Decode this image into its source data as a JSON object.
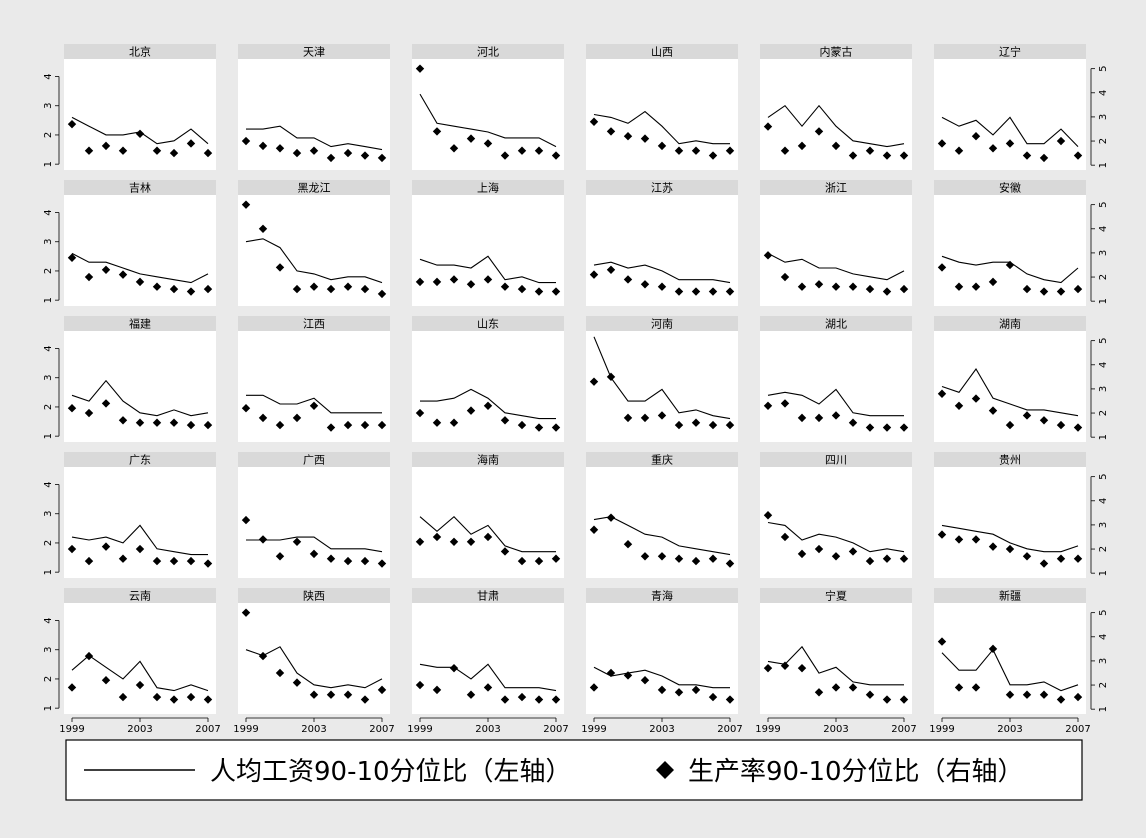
{
  "chart_data": {
    "type": "line",
    "layout": "small-multiples 5x6",
    "x": [
      1999,
      2000,
      2001,
      2002,
      2003,
      2004,
      2005,
      2006,
      2007
    ],
    "x_ticks": [
      "1999",
      "2003",
      "2007"
    ],
    "left_axis": {
      "ylim": [
        0.8,
        4.6
      ],
      "ticks": [
        "1",
        "2",
        "3",
        "4"
      ]
    },
    "right_axis": {
      "ylim": [
        0.8,
        5.4
      ],
      "ticks": [
        "1",
        "2",
        "3",
        "4",
        "5"
      ]
    },
    "legend": {
      "line_label": "人均工资90-10分位比（左轴）",
      "marker_label": "生产率90-10分位比（右轴）",
      "placement": "bottom"
    },
    "colors": {
      "background": "#eaeaea",
      "panel": "#ffffff",
      "strip": "#d9d9d9",
      "series": "#000000"
    },
    "panels": [
      {
        "name": "北京",
        "line": [
          2.6,
          2.3,
          2.0,
          2.0,
          2.1,
          1.7,
          1.8,
          2.2,
          1.7
        ],
        "points": [
          2.7,
          1.6,
          1.8,
          1.6,
          2.3,
          1.6,
          1.5,
          1.9,
          1.5
        ]
      },
      {
        "name": "天津",
        "line": [
          2.2,
          2.2,
          2.3,
          1.9,
          1.9,
          1.6,
          1.7,
          1.6,
          1.5
        ],
        "points": [
          2.0,
          1.8,
          1.7,
          1.5,
          1.6,
          1.3,
          1.5,
          1.4,
          1.3
        ]
      },
      {
        "name": "河北",
        "line": [
          3.4,
          2.4,
          2.3,
          2.2,
          2.1,
          1.9,
          1.9,
          1.9,
          1.6
        ],
        "points": [
          5.0,
          2.4,
          1.7,
          2.1,
          1.9,
          1.4,
          1.6,
          1.6,
          1.4
        ]
      },
      {
        "name": "山西",
        "line": [
          2.7,
          2.6,
          2.4,
          2.8,
          2.3,
          1.7,
          1.8,
          1.7,
          1.7
        ],
        "points": [
          2.8,
          2.4,
          2.2,
          2.1,
          1.8,
          1.6,
          1.6,
          1.4,
          1.6
        ]
      },
      {
        "name": "内蒙古",
        "line": [
          2.6,
          3.0,
          2.3,
          3.0,
          2.3,
          1.8,
          1.7,
          1.6,
          1.7
        ],
        "points": [
          2.6,
          1.6,
          1.8,
          2.4,
          1.8,
          1.4,
          1.6,
          1.4,
          1.4
        ]
      },
      {
        "name": "辽宁",
        "line": [
          2.6,
          2.3,
          2.5,
          2.0,
          2.6,
          1.7,
          1.7,
          2.2,
          1.6
        ],
        "points": [
          1.9,
          1.6,
          2.2,
          1.7,
          1.9,
          1.4,
          1.3,
          2.0,
          1.4
        ]
      },
      {
        "name": "吉林",
        "line": [
          2.6,
          2.3,
          2.3,
          2.1,
          1.9,
          1.8,
          1.7,
          1.6,
          1.9
        ],
        "points": [
          2.8,
          2.0,
          2.3,
          2.1,
          1.8,
          1.6,
          1.5,
          1.4,
          1.5
        ]
      },
      {
        "name": "黑龙江",
        "line": [
          3.0,
          3.1,
          2.8,
          2.0,
          1.9,
          1.7,
          1.8,
          1.8,
          1.6
        ],
        "points": [
          5.0,
          4.0,
          2.4,
          1.5,
          1.6,
          1.5,
          1.6,
          1.5,
          1.3
        ]
      },
      {
        "name": "上海",
        "line": [
          2.4,
          2.2,
          2.2,
          2.1,
          2.5,
          1.7,
          1.8,
          1.6,
          1.6
        ],
        "points": [
          1.8,
          1.8,
          1.9,
          1.7,
          1.9,
          1.6,
          1.5,
          1.4,
          1.4
        ]
      },
      {
        "name": "江苏",
        "line": [
          2.2,
          2.3,
          2.1,
          2.2,
          2.0,
          1.7,
          1.7,
          1.7,
          1.6
        ],
        "points": [
          2.1,
          2.3,
          1.9,
          1.7,
          1.6,
          1.4,
          1.4,
          1.4,
          1.4
        ]
      },
      {
        "name": "浙江",
        "line": [
          2.6,
          2.3,
          2.4,
          2.1,
          2.1,
          1.9,
          1.8,
          1.7,
          2.0
        ],
        "points": [
          2.9,
          2.0,
          1.6,
          1.7,
          1.6,
          1.6,
          1.5,
          1.4,
          1.5
        ]
      },
      {
        "name": "安徽",
        "line": [
          2.5,
          2.3,
          2.2,
          2.3,
          2.3,
          1.9,
          1.7,
          1.6,
          2.1
        ],
        "points": [
          2.4,
          1.6,
          1.6,
          1.8,
          2.5,
          1.5,
          1.4,
          1.4,
          1.5
        ]
      },
      {
        "name": "福建",
        "line": [
          2.4,
          2.2,
          2.9,
          2.2,
          1.8,
          1.7,
          1.9,
          1.7,
          1.8
        ],
        "points": [
          2.2,
          2.0,
          2.4,
          1.7,
          1.6,
          1.6,
          1.6,
          1.5,
          1.5
        ]
      },
      {
        "name": "江西",
        "line": [
          2.4,
          2.4,
          2.1,
          2.1,
          2.3,
          1.8,
          1.8,
          1.8,
          1.8
        ],
        "points": [
          2.2,
          1.8,
          1.5,
          1.8,
          2.3,
          1.4,
          1.5,
          1.5,
          1.5
        ]
      },
      {
        "name": "山东",
        "line": [
          2.2,
          2.2,
          2.3,
          2.6,
          2.3,
          1.8,
          1.7,
          1.6,
          1.6
        ],
        "points": [
          2.0,
          1.6,
          1.6,
          2.1,
          2.3,
          1.7,
          1.5,
          1.4,
          1.4
        ]
      },
      {
        "name": "河南",
        "line": [
          4.4,
          3.0,
          2.2,
          2.2,
          2.6,
          1.8,
          1.9,
          1.7,
          1.6
        ],
        "points": [
          3.3,
          3.5,
          1.8,
          1.8,
          1.9,
          1.5,
          1.6,
          1.5,
          1.5
        ]
      },
      {
        "name": "湖北",
        "line": [
          2.4,
          2.5,
          2.4,
          2.1,
          2.6,
          1.8,
          1.7,
          1.7,
          1.7
        ],
        "points": [
          2.3,
          2.4,
          1.8,
          1.8,
          1.9,
          1.6,
          1.4,
          1.4,
          1.4
        ]
      },
      {
        "name": "湖南",
        "line": [
          2.7,
          2.5,
          3.3,
          2.3,
          2.1,
          1.9,
          1.9,
          1.8,
          1.7
        ],
        "points": [
          2.8,
          2.3,
          2.6,
          2.1,
          1.5,
          1.9,
          1.7,
          1.5,
          1.4
        ]
      },
      {
        "name": "广东",
        "line": [
          2.2,
          2.1,
          2.2,
          2.0,
          2.6,
          1.8,
          1.7,
          1.6,
          1.6
        ],
        "points": [
          2.0,
          1.5,
          2.1,
          1.6,
          2.0,
          1.5,
          1.5,
          1.5,
          1.4
        ]
      },
      {
        "name": "广西",
        "line": [
          2.1,
          2.1,
          2.1,
          2.2,
          2.2,
          1.8,
          1.8,
          1.8,
          1.7
        ],
        "points": [
          3.2,
          2.4,
          1.7,
          2.3,
          1.8,
          1.6,
          1.5,
          1.5,
          1.4
        ]
      },
      {
        "name": "海南",
        "line": [
          2.9,
          2.4,
          2.9,
          2.3,
          2.6,
          1.9,
          1.7,
          1.7,
          1.7
        ],
        "points": [
          2.3,
          2.5,
          2.3,
          2.3,
          2.5,
          1.9,
          1.5,
          1.5,
          1.6
        ]
      },
      {
        "name": "重庆",
        "line": [
          2.8,
          2.9,
          2.6,
          2.3,
          2.2,
          1.9,
          1.8,
          1.7,
          1.6
        ],
        "points": [
          2.8,
          3.3,
          2.2,
          1.7,
          1.7,
          1.6,
          1.5,
          1.6,
          1.4
        ]
      },
      {
        "name": "四川",
        "line": [
          2.7,
          2.6,
          2.1,
          2.3,
          2.2,
          2.0,
          1.7,
          1.8,
          1.7
        ],
        "points": [
          3.4,
          2.5,
          1.8,
          2.0,
          1.7,
          1.9,
          1.5,
          1.6,
          1.6
        ]
      },
      {
        "name": "贵州",
        "line": [
          2.6,
          2.5,
          2.4,
          2.3,
          2.0,
          1.8,
          1.7,
          1.7,
          1.9
        ],
        "points": [
          2.6,
          2.4,
          2.4,
          2.1,
          2.0,
          1.7,
          1.4,
          1.6,
          1.6
        ]
      },
      {
        "name": "云南",
        "line": [
          2.3,
          2.8,
          2.4,
          2.0,
          2.6,
          1.7,
          1.6,
          1.8,
          1.6
        ],
        "points": [
          1.9,
          3.2,
          2.2,
          1.5,
          2.0,
          1.5,
          1.4,
          1.5,
          1.4
        ]
      },
      {
        "name": "陕西",
        "line": [
          3.0,
          2.8,
          3.1,
          2.2,
          1.8,
          1.7,
          1.8,
          1.7,
          2.0
        ],
        "points": [
          5.0,
          3.2,
          2.5,
          2.1,
          1.6,
          1.6,
          1.6,
          1.4,
          1.8
        ]
      },
      {
        "name": "甘肃",
        "line": [
          2.5,
          2.4,
          2.4,
          2.0,
          2.5,
          1.7,
          1.7,
          1.7,
          1.6
        ],
        "points": [
          2.0,
          1.8,
          2.7,
          1.6,
          1.9,
          1.4,
          1.5,
          1.4,
          1.4
        ]
      },
      {
        "name": "青海",
        "line": [
          2.4,
          2.1,
          2.2,
          2.3,
          2.1,
          1.8,
          1.8,
          1.7,
          1.7
        ],
        "points": [
          1.9,
          2.5,
          2.4,
          2.2,
          1.8,
          1.7,
          1.8,
          1.5,
          1.4
        ]
      },
      {
        "name": "宁夏",
        "line": [
          2.6,
          2.5,
          3.1,
          2.2,
          2.4,
          1.9,
          1.8,
          1.8,
          1.8
        ],
        "points": [
          2.7,
          2.8,
          2.7,
          1.7,
          1.9,
          1.9,
          1.6,
          1.4,
          1.4
        ]
      },
      {
        "name": "新疆",
        "line": [
          2.9,
          2.3,
          2.3,
          3.0,
          1.8,
          1.8,
          1.9,
          1.6,
          1.8
        ],
        "points": [
          3.8,
          1.9,
          1.9,
          3.5,
          1.6,
          1.6,
          1.6,
          1.4,
          1.5
        ]
      }
    ]
  }
}
